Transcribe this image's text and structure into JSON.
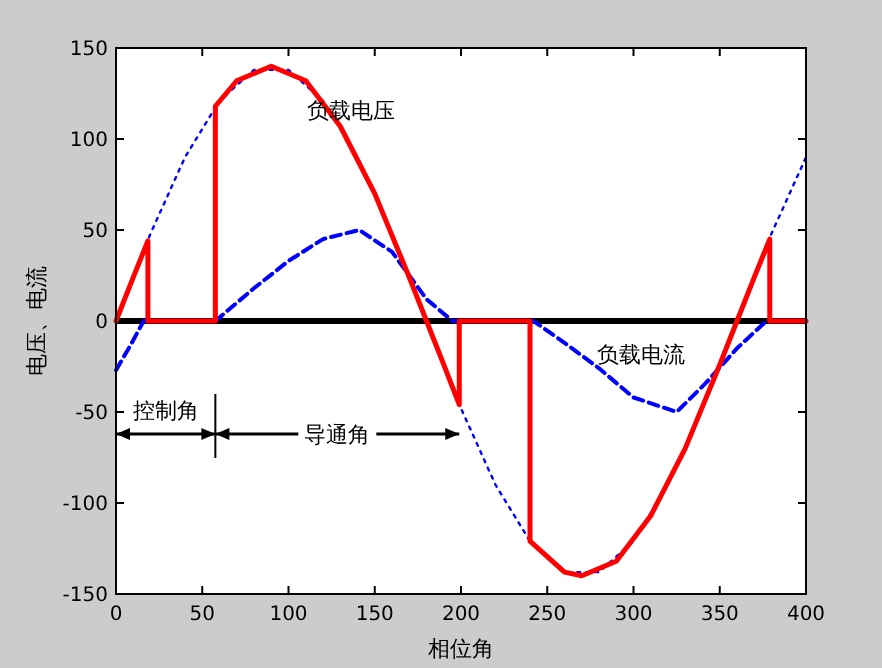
{
  "chart_data": {
    "type": "line",
    "xlabel": "相位角",
    "ylabel": "电压、电流",
    "xlim": [
      0,
      400
    ],
    "ylim": [
      -150,
      150
    ],
    "xticks": [
      0,
      50,
      100,
      150,
      200,
      250,
      300,
      350,
      400
    ],
    "yticks": [
      -150,
      -100,
      -50,
      0,
      50,
      100,
      150
    ],
    "grid": false,
    "legend": false,
    "series": [
      {
        "color": "#0000ff",
        "line_style": "dotted",
        "x": [
          0,
          20,
          40,
          60,
          80,
          100,
          120,
          140,
          160,
          180,
          200,
          220,
          240,
          260,
          280,
          300,
          320,
          340,
          360,
          380,
          400
        ],
        "values": [
          0,
          48,
          90,
          121,
          138,
          138,
          121,
          90,
          48,
          0,
          -48,
          -90,
          -121,
          -138,
          -138,
          -121,
          -90,
          -48,
          0,
          48,
          90
        ]
      },
      {
        "name": "负载电流",
        "color": "#0000ff",
        "line_style": "dashed",
        "x": [
          0,
          8,
          16,
          57.6,
          80,
          100,
          120,
          141,
          160,
          180,
          195,
          242,
          260,
          280,
          300,
          325,
          342,
          360,
          377,
          400
        ],
        "values": [
          -27,
          -14,
          0,
          0,
          18,
          33,
          45,
          50,
          38,
          12,
          0,
          0,
          -12,
          -26,
          -42,
          -50,
          -34,
          -15,
          0,
          0
        ]
      },
      {
        "name": "负载电压",
        "color": "#ff0000",
        "line_style": "solid",
        "x": [
          0,
          10,
          18.5,
          18.5,
          57.6,
          57.6,
          70,
          90,
          110,
          130,
          150,
          170,
          180,
          190,
          199,
          199,
          240,
          240,
          260,
          270,
          290,
          310,
          330,
          350,
          360,
          370,
          379,
          379,
          400
        ],
        "values": [
          0,
          24,
          44,
          0,
          0,
          118,
          132,
          140,
          132,
          107,
          70,
          24,
          0,
          -24,
          -46,
          0,
          0,
          -121,
          -138,
          -140,
          -132,
          -107,
          -70,
          -24,
          0,
          24,
          45,
          0,
          0
        ]
      }
    ],
    "ref_lines": [
      {
        "axis": "y",
        "value": 0,
        "color": "#000000"
      }
    ],
    "annotations": [
      "控制角",
      "导通角"
    ]
  }
}
